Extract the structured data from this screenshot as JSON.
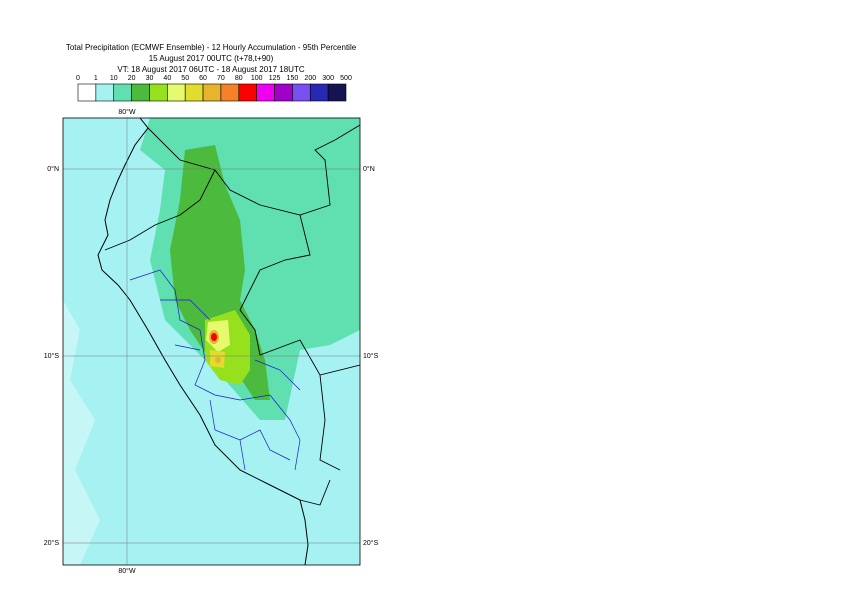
{
  "header": {
    "lines": [
      "Total Precipitation (ECMWF Ensemble) - 12 Hourly Accumulation - 95th Percentile",
      "15 August 2017 00UTC (t+78,t+90)",
      "VT: 18 August 2017 06UTC - 18 August 2017 18UTC"
    ]
  },
  "legend": {
    "ticks": [
      0,
      1,
      10,
      20,
      30,
      40,
      50,
      60,
      70,
      80,
      100,
      125,
      150,
      200,
      300,
      500
    ],
    "colors": [
      "#ffffff",
      "#a6f2f2",
      "#60dfb0",
      "#4cba3c",
      "#96e01e",
      "#e6fa6e",
      "#e1dc2d",
      "#e6b42d",
      "#f58228",
      "#fa0000",
      "#f000f0",
      "#a000c8",
      "#7850f0",
      "#2828b4",
      "#141450"
    ]
  },
  "map": {
    "lon_top": "80°W",
    "lon_bottom": "80°W",
    "lat_left": [
      "0°N",
      "10°S",
      "20°S"
    ],
    "lat_right": [
      "0°N",
      "10°S",
      "20°S"
    ]
  }
}
